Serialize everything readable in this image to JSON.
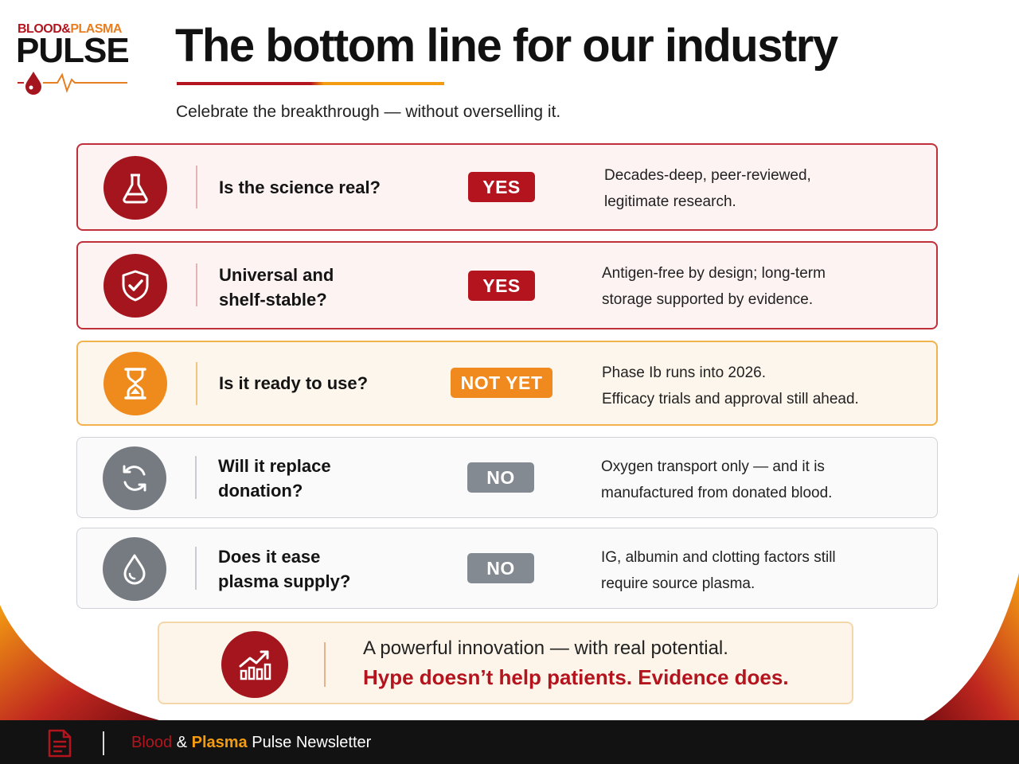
{
  "logo": {
    "top_word1": "BLOOD",
    "top_amp": "&",
    "top_word2": "PLASMA",
    "main": "PULSE",
    "icon": "blood-drop-heartbeat-icon"
  },
  "header": {
    "title": "The bottom line for our industry",
    "subtitle": "Celebrate the breakthrough — without overselling it."
  },
  "rows": [
    {
      "icon": "flask-icon",
      "question": "Is the science real?",
      "badge": "YES",
      "desc_line1": "Decades-deep, peer-reviewed,",
      "desc_line2": "legitimate research."
    },
    {
      "icon": "shield-check-icon",
      "question": "Universal and shelf-stable?",
      "badge": "YES",
      "desc_line1": "Antigen-free by design; long-term",
      "desc_line2": "storage supported by evidence."
    },
    {
      "icon": "hourglass-icon",
      "question": "Is it ready to use?",
      "badge": "NOT YET",
      "desc_line1": "Phase Ib runs into 2026.",
      "desc_line2": "Efficacy trials and approval still ahead."
    },
    {
      "icon": "refresh-cycle-icon",
      "question": "Will it replace donation?",
      "badge": "NO",
      "desc_line1": "Oxygen transport only — and it is",
      "desc_line2": "manufactured from donated blood."
    },
    {
      "icon": "water-drop-icon",
      "question": "Does it ease plasma supply?",
      "badge": "NO",
      "desc_line1": "IG, albumin and clotting factors still",
      "desc_line2": "require source plasma."
    }
  ],
  "bottom": {
    "icon": "growth-chart-icon",
    "line1": "A powerful innovation — with real potential.",
    "line2": "Hype doesn’t help patients. Evidence does."
  },
  "footer": {
    "icon": "document-icon",
    "part1": "Blood",
    "part2": "&",
    "part3": "Plasma",
    "part4": "Pulse Newsletter"
  },
  "colors": {
    "accent_red": "#b3141d",
    "accent_orange": "#f08a1f",
    "neutral_gray": "#848a92"
  }
}
